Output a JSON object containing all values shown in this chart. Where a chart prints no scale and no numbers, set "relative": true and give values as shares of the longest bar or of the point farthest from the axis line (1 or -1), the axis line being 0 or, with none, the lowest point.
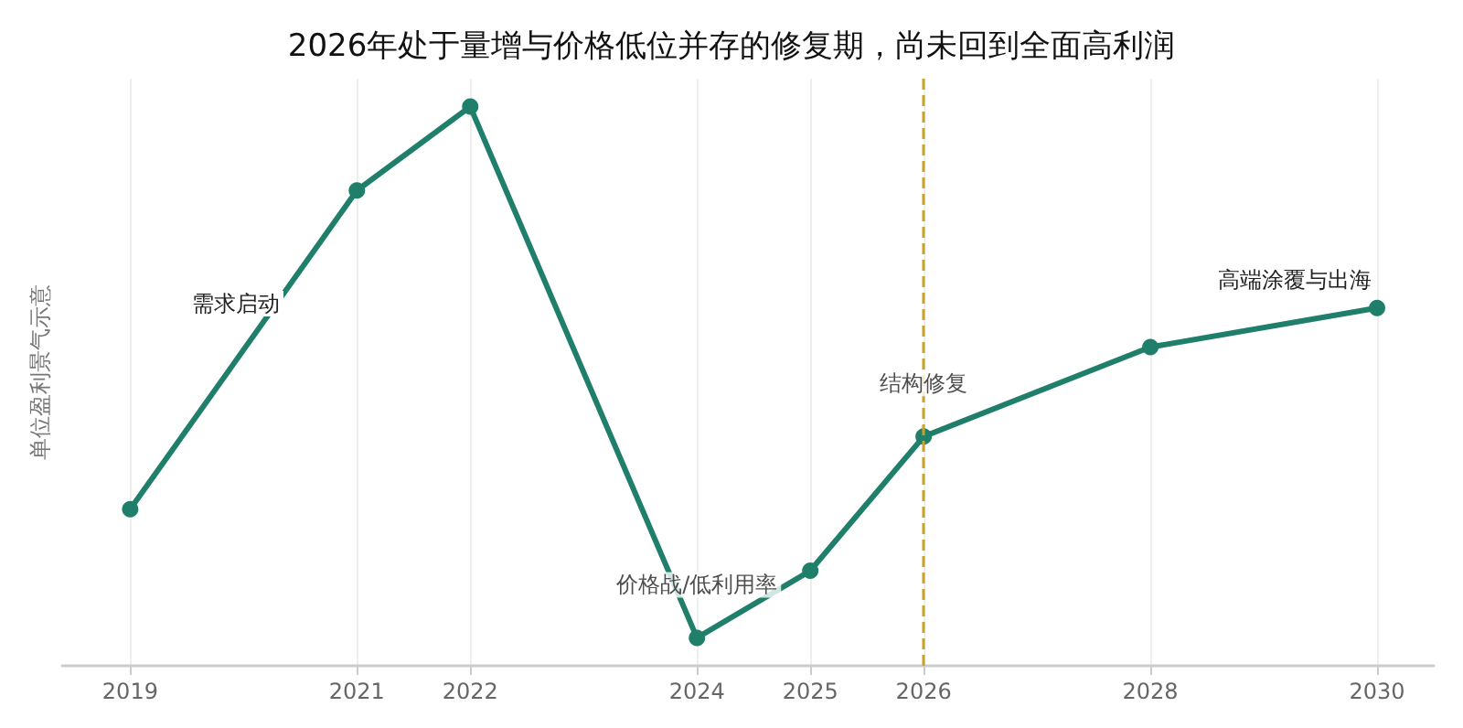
{
  "chart_data": {
    "type": "line",
    "title": "2026年处于量增与价格低位并存的修复期，尚未回到全面高利润",
    "ylabel": "单位盈利景气示意",
    "relative": true,
    "x": [
      2019,
      2021,
      2022,
      2024,
      2025,
      2026,
      2028,
      2030
    ],
    "xlim": [
      2018.4,
      2030.5
    ],
    "xticks": [
      2019,
      2021,
      2022,
      2024,
      2025,
      2026,
      2028,
      2030
    ],
    "series": [
      {
        "color": "#1f7f6b",
        "values": [
          0.28,
          0.85,
          1,
          0.05,
          0.17,
          0.41,
          0.57,
          0.64
        ]
      }
    ],
    "annotations": [
      "需求启动",
      {
        "text": "价格战/低利用率",
        "x": 2024,
        "y": 0.05
      },
      {
        "text": "结构修复",
        "x": 2026,
        "y": 0.41
      },
      "高端涂覆与出海"
    ],
    "ref_lines": [
      {
        "axis": "x",
        "value": 2026,
        "color": "#c9a227",
        "line_style": "dashed"
      }
    ],
    "grid": "x",
    "marker": "circle",
    "line_style": "solid"
  }
}
